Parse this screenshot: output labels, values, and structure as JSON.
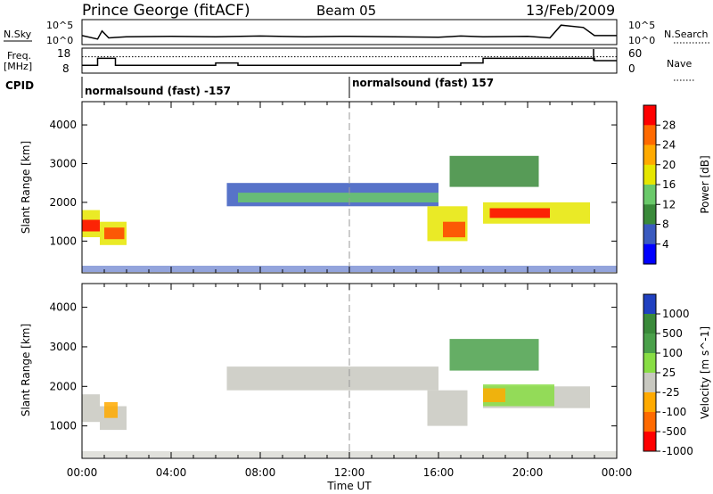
{
  "header": {
    "station": "Prince George (fitACF)",
    "beam": "Beam 05",
    "date": "13/Feb/2009"
  },
  "panels": {
    "nsky": {
      "left_label": "N.Sky",
      "left_ticks": [
        "10^5",
        "10^0"
      ],
      "right_ticks": [
        "10^5",
        "10^0"
      ],
      "right_label": "N.Search",
      "trace": [
        [
          0,
          0.35
        ],
        [
          0.7,
          0.2
        ],
        [
          0.9,
          0.55
        ],
        [
          1.2,
          0.25
        ],
        [
          2,
          0.3
        ],
        [
          4,
          0.32
        ],
        [
          6,
          0.3
        ],
        [
          8,
          0.33
        ],
        [
          10,
          0.3
        ],
        [
          12,
          0.32
        ],
        [
          14,
          0.3
        ],
        [
          16,
          0.28
        ],
        [
          17,
          0.33
        ],
        [
          18,
          0.3
        ],
        [
          20,
          0.32
        ],
        [
          21,
          0.25
        ],
        [
          21.5,
          0.8
        ],
        [
          22.5,
          0.7
        ],
        [
          23,
          0.35
        ],
        [
          24,
          0.35
        ]
      ]
    },
    "freq": {
      "left_label_line1": "Freq.",
      "left_label_line2": "[MHz]",
      "left_ticks": [
        "18",
        "8"
      ],
      "right_ticks": [
        "60",
        "0"
      ],
      "right_label": "Nave",
      "freq_steps": [
        [
          0,
          11
        ],
        [
          0.7,
          14
        ],
        [
          1.5,
          11
        ],
        [
          6,
          12
        ],
        [
          7,
          11
        ],
        [
          17,
          12
        ],
        [
          18,
          14
        ],
        [
          23,
          13
        ],
        [
          24,
          13
        ]
      ],
      "nave_level": 40
    },
    "cpid": {
      "label": "CPID",
      "modes": [
        {
          "text": "normalsound (fast) -157",
          "start": 0
        },
        {
          "text": "normalsound (fast) 157",
          "start": 12
        }
      ]
    }
  },
  "chart_data": [
    {
      "type": "heatmap",
      "title": "Power",
      "xlabel": "",
      "ylabel": "Slant Range [km]",
      "xlim": [
        0,
        24
      ],
      "ylim": [
        180,
        4600
      ],
      "yticks": [
        1000,
        2000,
        3000,
        4000
      ],
      "colorbar_label": "Power [dB]",
      "colorbar_ticks": [
        "28",
        "24",
        "20",
        "16",
        "12",
        "8",
        "4"
      ],
      "colorbar_colors": [
        "#ff0000",
        "#ff6a00",
        "#ffaa00",
        "#e6e600",
        "#6ac96a",
        "#3a8a3a",
        "#3a5abf",
        "#0000ff"
      ],
      "regions": [
        {
          "t0": 0.0,
          "t1": 0.8,
          "r0": 1100,
          "r1": 1800,
          "color": "#e6e600"
        },
        {
          "t0": 0.0,
          "t1": 0.8,
          "r0": 1250,
          "r1": 1550,
          "color": "#ff0000"
        },
        {
          "t0": 0.8,
          "t1": 2.0,
          "r0": 900,
          "r1": 1500,
          "color": "#e6e600"
        },
        {
          "t0": 1.0,
          "t1": 1.9,
          "r0": 1050,
          "r1": 1350,
          "color": "#ff4000"
        },
        {
          "t0": 6.5,
          "t1": 16.0,
          "r0": 1900,
          "r1": 2500,
          "color": "#3a5abf"
        },
        {
          "t0": 7.0,
          "t1": 16.0,
          "r0": 2000,
          "r1": 2250,
          "color": "#6ac96a"
        },
        {
          "t0": 15.5,
          "t1": 17.3,
          "r0": 1000,
          "r1": 1900,
          "color": "#e6e600"
        },
        {
          "t0": 16.2,
          "t1": 17.2,
          "r0": 1100,
          "r1": 1500,
          "color": "#ff4000"
        },
        {
          "t0": 18.0,
          "t1": 22.8,
          "r0": 1450,
          "r1": 2000,
          "color": "#e6e600"
        },
        {
          "t0": 18.3,
          "t1": 21.0,
          "r0": 1600,
          "r1": 1850,
          "color": "#ff0000"
        },
        {
          "t0": 16.5,
          "t1": 20.5,
          "r0": 2400,
          "r1": 3200,
          "color": "#3a8a3a"
        }
      ]
    },
    {
      "type": "heatmap",
      "title": "Velocity",
      "xlabel": "Time UT",
      "ylabel": "Slant Range [km]",
      "xlim": [
        0,
        24
      ],
      "ylim": [
        180,
        4600
      ],
      "yticks": [
        1000,
        2000,
        3000,
        4000
      ],
      "xticks": [
        "00:00",
        "04:00",
        "08:00",
        "12:00",
        "16:00",
        "20:00",
        "00:00"
      ],
      "colorbar_label": "Velocity [m s^-1]",
      "colorbar_ticks": [
        "1000",
        "500",
        "100",
        "25",
        "-25",
        "-100",
        "-500",
        "-1000"
      ],
      "colorbar_colors": [
        "#2040c0",
        "#3a8a3a",
        "#4aa04a",
        "#88dd44",
        "#c8c8c0",
        "#ffaa00",
        "#ff6a00",
        "#ff0000"
      ],
      "regions": [
        {
          "t0": 0.0,
          "t1": 0.8,
          "r0": 1100,
          "r1": 1800,
          "color": "#c8c8c0"
        },
        {
          "t0": 0.8,
          "t1": 2.0,
          "r0": 900,
          "r1": 1500,
          "color": "#c8c8c0"
        },
        {
          "t0": 1.0,
          "t1": 1.6,
          "r0": 1200,
          "r1": 1600,
          "color": "#ffaa00"
        },
        {
          "t0": 6.5,
          "t1": 16.0,
          "r0": 1900,
          "r1": 2500,
          "color": "#c8c8c0"
        },
        {
          "t0": 15.5,
          "t1": 17.3,
          "r0": 1000,
          "r1": 1900,
          "color": "#c8c8c0"
        },
        {
          "t0": 18.0,
          "t1": 22.8,
          "r0": 1450,
          "r1": 2000,
          "color": "#c8c8c0"
        },
        {
          "t0": 18.0,
          "t1": 21.2,
          "r0": 1500,
          "r1": 2050,
          "color": "#88dd44"
        },
        {
          "t0": 18.0,
          "t1": 19.0,
          "r0": 1600,
          "r1": 1950,
          "color": "#ffaa00"
        },
        {
          "t0": 16.5,
          "t1": 20.5,
          "r0": 2400,
          "r1": 3200,
          "color": "#4aa04a"
        }
      ]
    }
  ]
}
